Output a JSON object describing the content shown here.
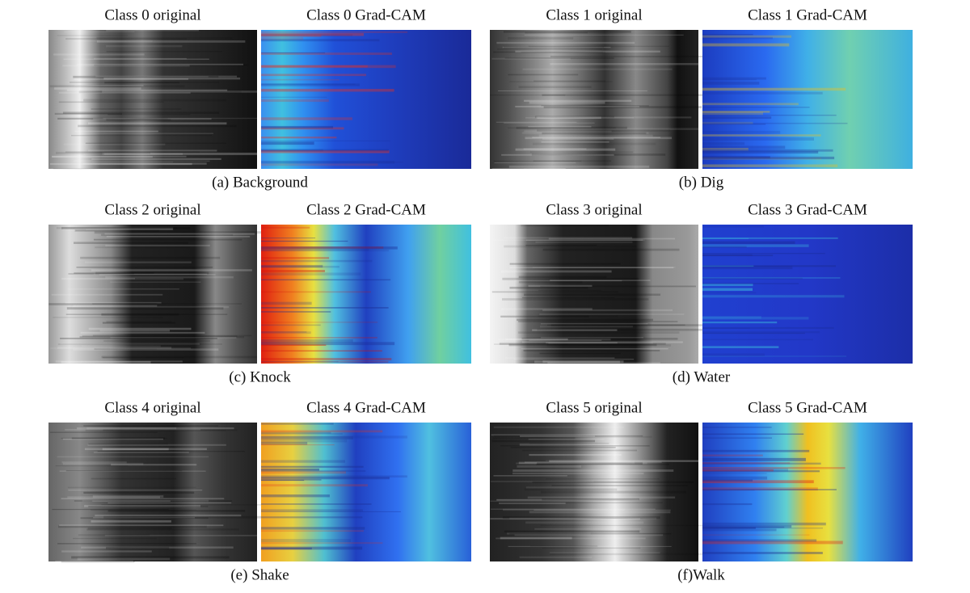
{
  "panels": [
    {
      "original_title": "Class 0 original",
      "gradcam_title": "Class 0 Grad-CAM",
      "caption": "(a) Background"
    },
    {
      "original_title": "Class 1 original",
      "gradcam_title": "Class 1 Grad-CAM",
      "caption": "(b) Dig"
    },
    {
      "original_title": "Class 2 original",
      "gradcam_title": "Class 2 Grad-CAM",
      "caption": "(c) Knock"
    },
    {
      "original_title": "Class 3 original",
      "gradcam_title": "Class 3 Grad-CAM",
      "caption": "(d) Water"
    },
    {
      "original_title": "Class 4 original",
      "gradcam_title": "Class 4 Grad-CAM",
      "caption": "(e) Shake"
    },
    {
      "original_title": "Class 5 original",
      "gradcam_title": "Class 5 Grad-CAM",
      "caption": "(f)Walk"
    }
  ]
}
